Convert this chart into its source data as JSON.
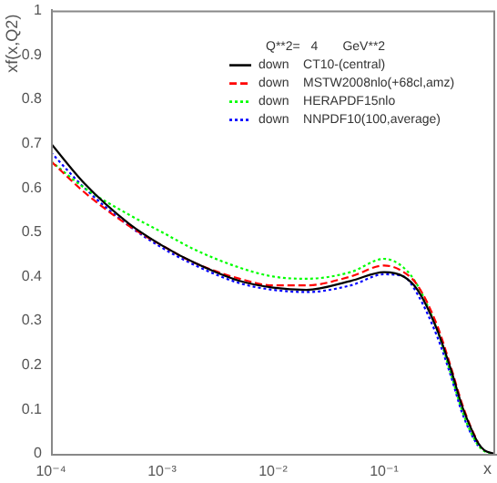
{
  "chart_data": {
    "type": "line",
    "ylabel": "xf(x,Q2)",
    "xlabel": "x",
    "legend_title": "Q**2=   4       GeV**2",
    "log": "x",
    "xlim": [
      0.0001,
      1
    ],
    "xticks": [
      {
        "value": 0.0001,
        "label": "10⁻⁴"
      },
      {
        "value": 0.001,
        "label": "10⁻³"
      },
      {
        "value": 0.01,
        "label": "10⁻²"
      },
      {
        "value": 0.1,
        "label": "10⁻¹"
      }
    ],
    "ylim": [
      0,
      1
    ],
    "yticks": [
      0,
      0.1,
      0.2,
      0.3,
      0.4,
      0.5,
      0.6,
      0.7,
      0.8,
      0.9,
      1
    ],
    "grid": false,
    "legend": "top right",
    "marker": "none",
    "x": [
      0.0001,
      0.0002,
      0.0005,
      0.001,
      0.002,
      0.005,
      0.01,
      0.02,
      0.05,
      0.1,
      0.15,
      0.2,
      0.3,
      0.4,
      0.5,
      0.6,
      0.7,
      0.8,
      1
    ],
    "series": [
      {
        "name": "down    CT10-(central)",
        "color": "#000000",
        "line_style": "solid",
        "values": [
          0.7,
          0.61,
          0.52,
          0.47,
          0.43,
          0.39,
          0.375,
          0.37,
          0.39,
          0.41,
          0.4,
          0.37,
          0.28,
          0.19,
          0.11,
          0.06,
          0.025,
          0.008,
          0
        ]
      },
      {
        "name": "down    MSTW2008nlo(+68cl,amz)",
        "color": "#ff0000",
        "line_style": "dashed",
        "values": [
          0.66,
          0.59,
          0.515,
          0.47,
          0.43,
          0.395,
          0.38,
          0.38,
          0.4,
          0.425,
          0.41,
          0.38,
          0.29,
          0.195,
          0.115,
          0.062,
          0.026,
          null,
          null
        ]
      },
      {
        "name": "down    HERAPDF15nlo",
        "color": "#00ff00",
        "line_style": "dotted",
        "values": [
          0.66,
          0.6,
          0.54,
          0.5,
          0.46,
          0.42,
          0.4,
          0.395,
          0.41,
          0.44,
          0.42,
          0.38,
          0.28,
          0.18,
          0.1,
          0.05,
          0.02,
          0.006,
          0
        ]
      },
      {
        "name": "down    NNPDF10(100,average)",
        "color": "#0000ff",
        "line_style": "dotted",
        "values": [
          0.68,
          0.6,
          0.515,
          0.465,
          0.425,
          0.385,
          0.37,
          0.365,
          0.38,
          0.405,
          0.4,
          0.36,
          0.265,
          0.175,
          0.095,
          0.048,
          0.018,
          null,
          null
        ]
      }
    ]
  }
}
